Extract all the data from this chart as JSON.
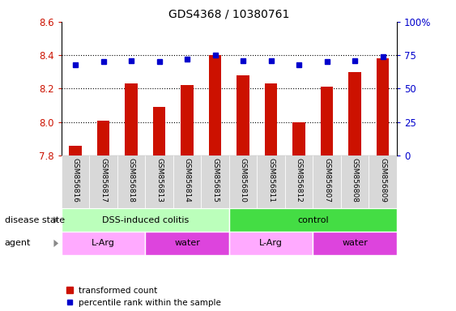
{
  "title": "GDS4368 / 10380761",
  "samples": [
    "GSM856816",
    "GSM856817",
    "GSM856818",
    "GSM856813",
    "GSM856814",
    "GSM856815",
    "GSM856810",
    "GSM856811",
    "GSM856812",
    "GSM856807",
    "GSM856808",
    "GSM856809"
  ],
  "bar_values": [
    7.86,
    8.01,
    8.23,
    8.09,
    8.22,
    8.4,
    8.28,
    8.23,
    8.0,
    8.21,
    8.3,
    8.38
  ],
  "percentile_values": [
    68,
    70,
    71,
    70,
    72,
    75,
    71,
    71,
    68,
    70,
    71,
    74
  ],
  "ylim_left": [
    7.8,
    8.6
  ],
  "ylim_right": [
    0,
    100
  ],
  "yticks_left": [
    7.8,
    8.0,
    8.2,
    8.4,
    8.6
  ],
  "yticks_right": [
    0,
    25,
    50,
    75,
    100
  ],
  "bar_color": "#cc1100",
  "dot_color": "#0000cc",
  "disease_state_groups": [
    {
      "label": "DSS-induced colitis",
      "start": 0,
      "end": 6,
      "color": "#bbffbb"
    },
    {
      "label": "control",
      "start": 6,
      "end": 12,
      "color": "#44dd44"
    }
  ],
  "agent_groups": [
    {
      "label": "L-Arg",
      "start": 0,
      "end": 3,
      "color": "#ffaaff"
    },
    {
      "label": "water",
      "start": 3,
      "end": 6,
      "color": "#dd44dd"
    },
    {
      "label": "L-Arg",
      "start": 6,
      "end": 9,
      "color": "#ffaaff"
    },
    {
      "label": "water",
      "start": 9,
      "end": 12,
      "color": "#dd44dd"
    }
  ],
  "legend_bar_label": "transformed count",
  "legend_dot_label": "percentile rank within the sample",
  "disease_state_label": "disease state",
  "agent_label": "agent",
  "bar_color_legend": "#cc1100",
  "dot_color_legend": "#0000cc",
  "sample_box_color": "#d8d8d8",
  "left_axis_color": "#cc1100",
  "right_axis_color": "#0000cc"
}
